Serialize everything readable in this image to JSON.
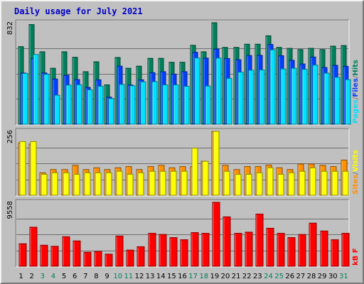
{
  "title": "Daily usage for July 2021",
  "colors": {
    "hits": "#00805c",
    "files": "#0040ff",
    "pages": "#00e0ff",
    "visits": "#ffff00",
    "sites": "#ff9000",
    "kbytes": "#ff0000",
    "weekend_label": "#00805c",
    "weekday_label": "#000000",
    "panel_bg": "#c0c0c0"
  },
  "chart_data": [
    {
      "type": "bar",
      "name": "hits-files-pages",
      "ymax_label": "832",
      "ymax": 832,
      "legend": [
        "Pages",
        "/",
        "Files",
        "/",
        "Hits"
      ],
      "categories": [
        "1",
        "2",
        "3",
        "4",
        "5",
        "6",
        "7",
        "8",
        "9",
        "10",
        "11",
        "12",
        "13",
        "14",
        "15",
        "16",
        "17",
        "18",
        "19",
        "20",
        "21",
        "22",
        "23",
        "24",
        "25",
        "26",
        "27",
        "28",
        "29",
        "30",
        "31"
      ],
      "series": [
        {
          "name": "Hits",
          "values": [
            636,
            817,
            594,
            459,
            594,
            549,
            431,
            512,
            323,
            547,
            459,
            476,
            540,
            540,
            508,
            508,
            647,
            594,
            832,
            630,
            630,
            656,
            656,
            725,
            630,
            622,
            612,
            622,
            612,
            640,
            645
          ]
        },
        {
          "name": "Files",
          "values": [
            420,
            540,
            420,
            371,
            402,
            366,
            302,
            364,
            222,
            476,
            322,
            364,
            423,
            431,
            411,
            431,
            590,
            542,
            617,
            539,
            529,
            563,
            565,
            654,
            562,
            524,
            494,
            551,
            465,
            483,
            475
          ]
        },
        {
          "name": "Pages",
          "values": [
            417,
            572,
            409,
            238,
            321,
            324,
            283,
            311,
            211,
            327,
            316,
            348,
            349,
            323,
            323,
            311,
            543,
            313,
            542,
            376,
            427,
            443,
            445,
            610,
            453,
            459,
            450,
            485,
            419,
            385,
            366
          ]
        }
      ]
    },
    {
      "type": "bar",
      "name": "visits-sites",
      "ymax_label": "256",
      "ymax": 256,
      "legend": [
        "Sites",
        "/",
        "Visits"
      ],
      "categories": [
        "1",
        "2",
        "3",
        "4",
        "5",
        "6",
        "7",
        "8",
        "9",
        "10",
        "11",
        "12",
        "13",
        "14",
        "15",
        "16",
        "17",
        "18",
        "19",
        "20",
        "21",
        "22",
        "23",
        "24",
        "25",
        "26",
        "27",
        "28",
        "29",
        "30",
        "31"
      ],
      "series": [
        {
          "name": "Visits",
          "values": [
            215,
            215,
            84,
            90,
            90,
            84,
            90,
            90,
            90,
            96,
            84,
            90,
            96,
            96,
            96,
            96,
            189,
            136,
            256,
            96,
            84,
            84,
            90,
            110,
            84,
            90,
            96,
            110,
            96,
            96,
            96
          ]
        },
        {
          "name": "Sites",
          "values": [
            210,
            205,
            90,
            103,
            103,
            120,
            103,
            110,
            103,
            110,
            115,
            103,
            115,
            120,
            110,
            115,
            115,
            136,
            256,
            120,
            103,
            115,
            115,
            121,
            110,
            103,
            125,
            125,
            120,
            115,
            141
          ]
        }
      ]
    },
    {
      "type": "bar",
      "name": "kbytes",
      "ymax_label": "9558",
      "ymax": 9558,
      "legend": [
        "kB",
        "F"
      ],
      "categories": [
        "1",
        "2",
        "3",
        "4",
        "5",
        "6",
        "7",
        "8",
        "9",
        "10",
        "11",
        "12",
        "13",
        "14",
        "15",
        "16",
        "17",
        "18",
        "19",
        "20",
        "21",
        "22",
        "23",
        "24",
        "25",
        "26",
        "27",
        "28",
        "29",
        "30",
        "31"
      ],
      "series": [
        {
          "name": "kB F",
          "values": [
            3368,
            5841,
            3147,
            2987,
            4415,
            3788,
            2096,
            2215,
            1812,
            4524,
            2418,
            2923,
            4930,
            4757,
            4290,
            3967,
            5035,
            4930,
            9558,
            7390,
            4930,
            5102,
            7806,
            5687,
            4930,
            4290,
            4757,
            6453,
            5273,
            3967,
            4930
          ]
        }
      ]
    }
  ],
  "day_labels": [
    "1",
    "2",
    "3",
    "4",
    "5",
    "6",
    "7",
    "8",
    "9",
    "10",
    "11",
    "12",
    "13",
    "14",
    "15",
    "16",
    "17",
    "18",
    "19",
    "20",
    "21",
    "22",
    "23",
    "24",
    "25",
    "26",
    "27",
    "28",
    "29",
    "30",
    "31"
  ],
  "weekend_days": [
    3,
    4,
    10,
    11,
    17,
    18,
    24,
    25,
    31
  ]
}
